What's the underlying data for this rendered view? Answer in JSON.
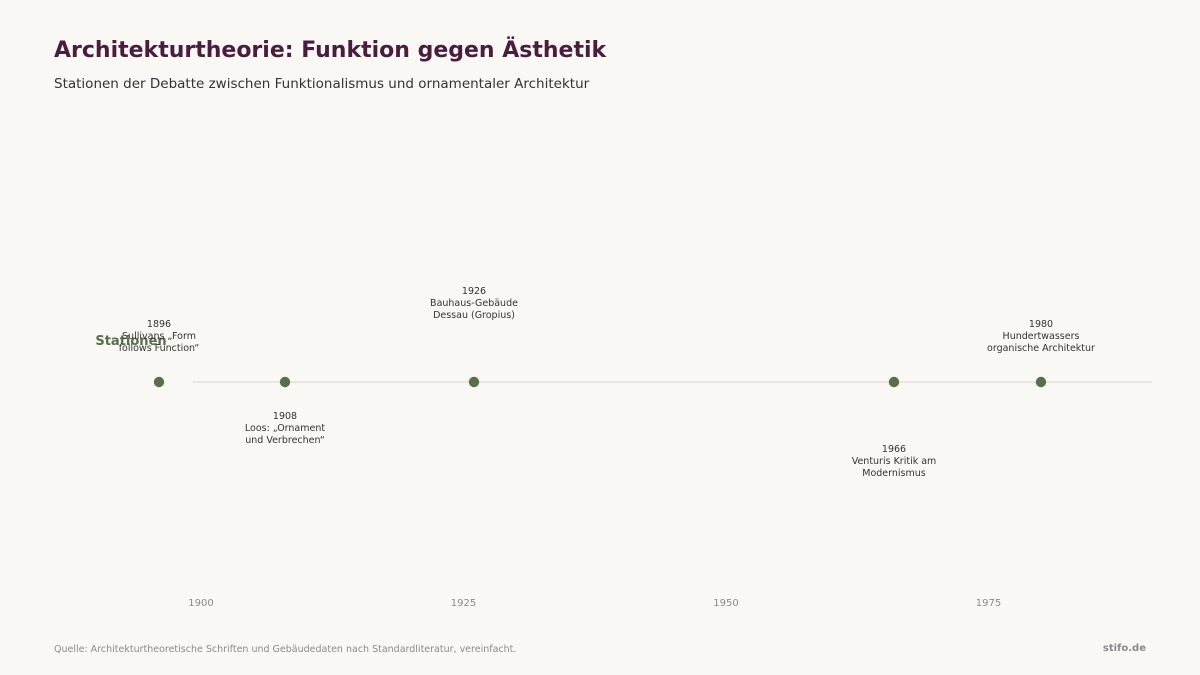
{
  "header": {
    "title": "Architekturtheorie: Funktion gegen Ästhetik",
    "subtitle": "Stationen der Debatte zwischen Funktionalismus und ornamentaler Architektur"
  },
  "footer": {
    "source": "Quelle: Architekturtheoretische Schriften und Gebäudedaten nach Standardliteratur, vereinfacht.",
    "brand": "stifo.de"
  },
  "colors": {
    "accent": "#5a6e4e",
    "title": "#4a1d3f",
    "axis_line": "#e3e0d8",
    "tick_text": "#8a8a8a"
  },
  "chart_data": {
    "type": "timeline",
    "xlim": [
      1886,
      1990
    ],
    "x_ticks": [
      1900,
      1925,
      1950,
      1975
    ],
    "row_label": "Stationen",
    "events": [
      {
        "year": 1896,
        "year_label": "1896",
        "lines": [
          "Sullivans „Form",
          "follows Function“"
        ],
        "side": "above",
        "level": 1
      },
      {
        "year": 1908,
        "year_label": "1908",
        "lines": [
          "Loos: „Ornament",
          "und Verbrechen“"
        ],
        "side": "below",
        "level": 1
      },
      {
        "year": 1926,
        "year_label": "1926",
        "lines": [
          "Bauhaus-Gebäude",
          "Dessau (Gropius)"
        ],
        "side": "above",
        "level": 2
      },
      {
        "year": 1966,
        "year_label": "1966",
        "lines": [
          "Venturis Kritik am",
          "Modernismus"
        ],
        "side": "below",
        "level": 2
      },
      {
        "year": 1980,
        "year_label": "1980",
        "lines": [
          "Hundertwassers",
          "organische Architektur"
        ],
        "side": "above",
        "level": 1
      }
    ]
  }
}
